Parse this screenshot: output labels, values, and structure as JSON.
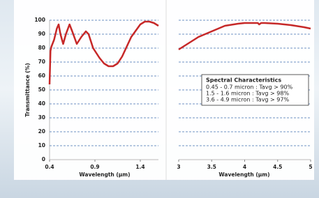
{
  "chart_data": [
    {
      "type": "line",
      "y_label": "Transmittance (%)",
      "x_label": "Wavelength (µm)",
      "x": [
        0.4,
        0.41,
        0.42,
        0.45,
        0.48,
        0.5,
        0.52,
        0.55,
        0.58,
        0.62,
        0.65,
        0.7,
        0.75,
        0.8,
        0.83,
        0.88,
        0.95,
        1.0,
        1.05,
        1.1,
        1.15,
        1.2,
        1.3,
        1.4,
        1.45,
        1.5,
        1.55,
        1.6
      ],
      "values": [
        54,
        78,
        81,
        86,
        94,
        97,
        90,
        83,
        90,
        97,
        92,
        83,
        88,
        92,
        90,
        80,
        73,
        69,
        67,
        67,
        69,
        74,
        88,
        97,
        99,
        99,
        98,
        96
      ],
      "color": "#c62828",
      "xlim": [
        0.4,
        1.6
      ],
      "xticks": [
        0.4,
        0.9,
        1.4
      ],
      "ylim": [
        0,
        100
      ],
      "yticks": [
        0,
        10,
        20,
        30,
        40,
        50,
        60,
        70,
        80,
        90,
        100
      ],
      "grid": true
    },
    {
      "type": "line",
      "x_label": "Wavelength (µm)",
      "x": [
        3.0,
        3.1,
        3.2,
        3.3,
        3.5,
        3.7,
        3.9,
        4.0,
        4.1,
        4.2,
        4.22,
        4.25,
        4.3,
        4.5,
        4.7,
        4.9,
        5.0
      ],
      "values": [
        79,
        82,
        85,
        88,
        92,
        96,
        97.5,
        98,
        98,
        98,
        97,
        98,
        98,
        97.5,
        96.5,
        95,
        94
      ],
      "color": "#c62828",
      "xlim": [
        3,
        5
      ],
      "xticks": [
        3,
        3.5,
        4,
        4.5,
        5
      ],
      "ylim": [
        0,
        100
      ],
      "grid": true,
      "annotation": {
        "title": "Spectral Characteristics",
        "lines": [
          "0.45 - 0.7 micron : Tavg > 90%",
          "1.5 - 1.6 micron : Tavg >  98%",
          "3.6 - 4.9 micron : Tavg > 97%"
        ]
      }
    }
  ]
}
